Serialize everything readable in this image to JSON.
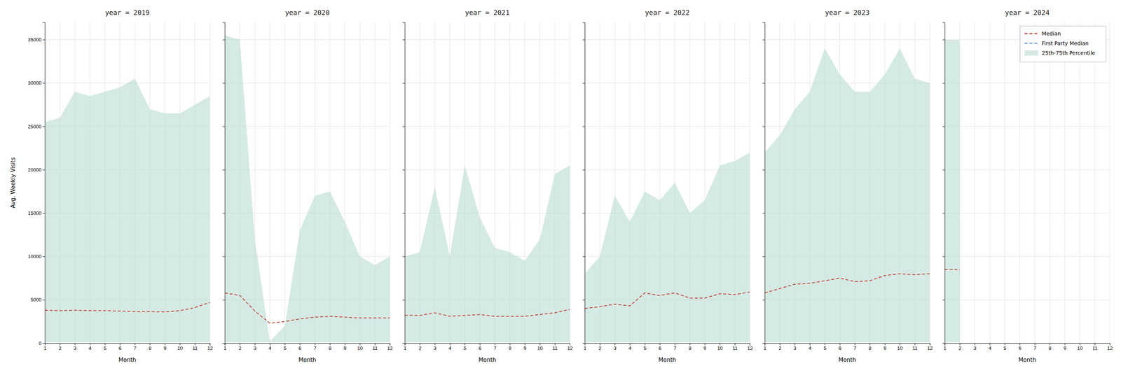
{
  "chart_data": [
    {
      "type": "line",
      "title": "year = 2019",
      "x_label": "Month",
      "y_label": "Avg. Weekly Visits",
      "x": [
        1,
        2,
        3,
        4,
        5,
        6,
        7,
        8,
        9,
        10,
        11,
        12
      ],
      "series": [
        {
          "name": "Median",
          "type": "line",
          "color": "#c0392b",
          "line_style": "dashed",
          "values": [
            3800,
            3750,
            3800,
            3750,
            3750,
            3700,
            3650,
            3650,
            3600,
            3750,
            4100,
            4700
          ]
        },
        {
          "name": "25th-75th Percentile",
          "type": "area",
          "color": "#b2d8d0",
          "values": [
            25500,
            26000,
            29000,
            28500,
            29000,
            29500,
            30500,
            27000,
            26500,
            26500,
            27500,
            28500
          ],
          "base": [
            100,
            100,
            100,
            100,
            100,
            100,
            100,
            100,
            100,
            100,
            100,
            100
          ]
        }
      ],
      "xlim": [
        1,
        12
      ],
      "xticks": [
        1,
        2,
        3,
        4,
        5,
        6,
        7,
        8,
        9,
        10,
        11,
        12
      ],
      "ylim": [
        0,
        37000
      ],
      "yticks": [
        0,
        5000,
        10000,
        15000,
        20000,
        25000,
        30000,
        35000
      ],
      "grid": true
    },
    {
      "type": "line",
      "title": "year = 2020",
      "x_label": "Month",
      "x": [
        1,
        2,
        3,
        4,
        5,
        6,
        7,
        8,
        9,
        10,
        11,
        12
      ],
      "series": [
        {
          "name": "Median",
          "type": "line",
          "color": "#c0392b",
          "line_style": "dashed",
          "values": [
            5800,
            5500,
            3700,
            2300,
            2500,
            2800,
            3000,
            3100,
            3000,
            2900,
            2900,
            2900
          ]
        },
        {
          "name": "25th-75th Percentile",
          "type": "area",
          "color": "#b2d8d0",
          "values": [
            35500,
            35000,
            12000,
            200,
            2000,
            13000,
            17000,
            17500,
            14000,
            10000,
            9000,
            10000
          ],
          "base": [
            100,
            100,
            100,
            100,
            100,
            100,
            100,
            100,
            100,
            100,
            100,
            100
          ]
        }
      ],
      "xlim": [
        1,
        12
      ],
      "xticks": [
        1,
        2,
        3,
        4,
        5,
        6,
        7,
        8,
        9,
        10,
        11,
        12
      ],
      "ylim": [
        0,
        37000
      ],
      "yticks": [
        0,
        5000,
        10000,
        15000,
        20000,
        25000,
        30000,
        35000
      ],
      "grid": true,
      "tick_labels": "x"
    },
    {
      "type": "line",
      "title": "year = 2021",
      "x_label": "Month",
      "x": [
        1,
        2,
        3,
        4,
        5,
        6,
        7,
        8,
        9,
        10,
        11,
        12
      ],
      "series": [
        {
          "name": "Median",
          "type": "line",
          "color": "#c0392b",
          "line_style": "dashed",
          "values": [
            3200,
            3200,
            3500,
            3100,
            3200,
            3300,
            3100,
            3100,
            3100,
            3300,
            3500,
            3900
          ]
        },
        {
          "name": "25th-75th Percentile",
          "type": "area",
          "color": "#b2d8d0",
          "values": [
            10000,
            10500,
            18000,
            10000,
            20500,
            14500,
            11000,
            10500,
            9500,
            12000,
            19500,
            20500
          ],
          "base": [
            100,
            100,
            100,
            100,
            100,
            100,
            100,
            100,
            100,
            100,
            100,
            100
          ]
        }
      ],
      "xlim": [
        1,
        12
      ],
      "xticks": [
        1,
        2,
        3,
        4,
        5,
        6,
        7,
        8,
        9,
        10,
        11,
        12
      ],
      "ylim": [
        0,
        37000
      ],
      "yticks": [
        0,
        5000,
        10000,
        15000,
        20000,
        25000,
        30000,
        35000
      ],
      "grid": true,
      "tick_labels": "x"
    },
    {
      "type": "line",
      "title": "year = 2022",
      "x_label": "Month",
      "x": [
        1,
        2,
        3,
        4,
        5,
        6,
        7,
        8,
        9,
        10,
        11,
        12
      ],
      "series": [
        {
          "name": "Median",
          "type": "line",
          "color": "#c0392b",
          "line_style": "dashed",
          "values": [
            4000,
            4200,
            4500,
            4300,
            5800,
            5500,
            5800,
            5200,
            5200,
            5700,
            5600,
            5900
          ]
        },
        {
          "name": "25th-75th Percentile",
          "type": "area",
          "color": "#b2d8d0",
          "values": [
            8000,
            10000,
            17000,
            14000,
            17500,
            16500,
            18500,
            15000,
            16500,
            20500,
            21000,
            22000
          ],
          "base": [
            100,
            100,
            100,
            100,
            100,
            100,
            100,
            100,
            100,
            100,
            100,
            100
          ]
        }
      ],
      "xlim": [
        1,
        12
      ],
      "xticks": [
        1,
        2,
        3,
        4,
        5,
        6,
        7,
        8,
        9,
        10,
        11,
        12
      ],
      "ylim": [
        0,
        37000
      ],
      "yticks": [
        0,
        5000,
        10000,
        15000,
        20000,
        25000,
        30000,
        35000
      ],
      "grid": true,
      "tick_labels": "x"
    },
    {
      "type": "line",
      "title": "year = 2023",
      "x_label": "Month",
      "x": [
        1,
        2,
        3,
        4,
        5,
        6,
        7,
        8,
        9,
        10,
        11,
        12
      ],
      "series": [
        {
          "name": "Median",
          "type": "line",
          "color": "#c0392b",
          "line_style": "dashed",
          "values": [
            5800,
            6300,
            6800,
            6900,
            7200,
            7500,
            7100,
            7200,
            7800,
            8000,
            7900,
            8000
          ]
        },
        {
          "name": "25th-75th Percentile",
          "type": "area",
          "color": "#b2d8d0",
          "values": [
            22000,
            24000,
            27000,
            29000,
            34000,
            31000,
            29000,
            29000,
            31000,
            34000,
            30500,
            30000
          ],
          "base": [
            100,
            100,
            100,
            100,
            100,
            100,
            100,
            100,
            100,
            100,
            100,
            100
          ]
        }
      ],
      "xlim": [
        1,
        12
      ],
      "xticks": [
        1,
        2,
        3,
        4,
        5,
        6,
        7,
        8,
        9,
        10,
        11,
        12
      ],
      "ylim": [
        0,
        37000
      ],
      "yticks": [
        0,
        5000,
        10000,
        15000,
        20000,
        25000,
        30000,
        35000
      ],
      "grid": true,
      "tick_labels": "x"
    },
    {
      "type": "line",
      "title": "year = 2024",
      "x_label": "Month",
      "x": [
        1,
        2
      ],
      "series": [
        {
          "name": "Median",
          "type": "line",
          "color": "#c0392b",
          "line_style": "dashed",
          "values": [
            8500,
            8500
          ]
        },
        {
          "name": "First Party Median",
          "type": "line",
          "color": "#5b8dd9",
          "line_style": "dashed",
          "values": [
            null,
            null
          ]
        },
        {
          "name": "25th-75th Percentile",
          "type": "area",
          "color": "#b2d8d0",
          "values": [
            35000,
            35000
          ],
          "base": [
            100,
            100
          ]
        }
      ],
      "xlim": [
        1,
        12
      ],
      "xticks": [
        1,
        2,
        3,
        4,
        5,
        6,
        7,
        8,
        9,
        10,
        11,
        12
      ],
      "ylim": [
        0,
        37000
      ],
      "yticks": [
        0,
        5000,
        10000,
        15000,
        20000,
        25000,
        30000,
        35000
      ],
      "grid": true,
      "tick_labels": "x",
      "legend": "upper right"
    }
  ]
}
